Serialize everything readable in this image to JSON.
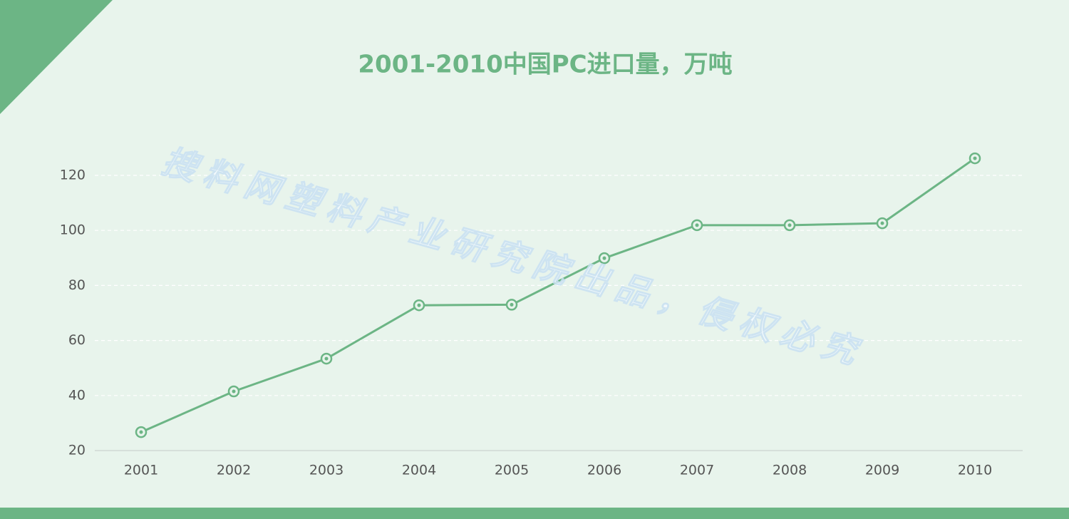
{
  "chart_data": {
    "type": "line",
    "title": "2001-2010中国PC进口量，万吨",
    "watermark": "搜料网塑料产业研究院出品，侵权必究",
    "categories": [
      "2001",
      "2002",
      "2003",
      "2004",
      "2005",
      "2006",
      "2007",
      "2008",
      "2009",
      "2010"
    ],
    "values": [
      26.7,
      41.5,
      53.4,
      72.8,
      73,
      89.9,
      101.9,
      101.9,
      102.6,
      126.2
    ],
    "color": "#6cb585",
    "ylim": [
      20,
      130
    ],
    "yticks": [
      20,
      40,
      60,
      80,
      100,
      120
    ],
    "grid": true
  }
}
